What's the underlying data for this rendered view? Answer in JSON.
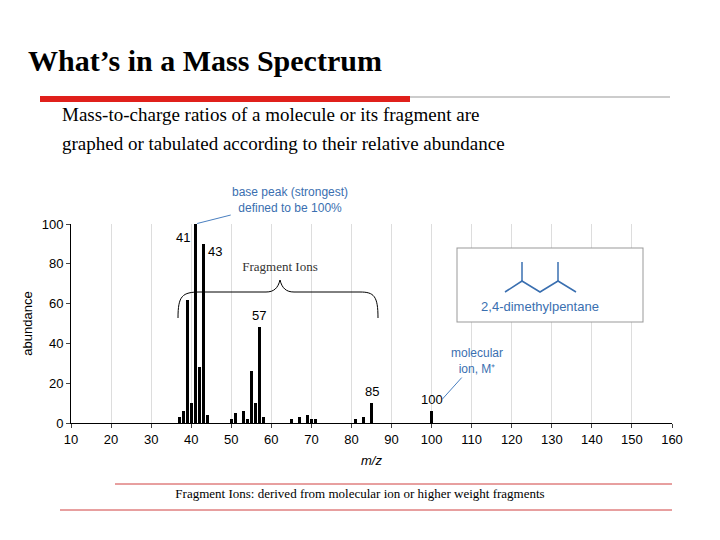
{
  "slide": {
    "title": "What’s in a Mass Spectrum",
    "subtitle": [
      "Mass-to-charge ratios of a molecule or its fragment are",
      "graphed or tabulated according to their relative abundance"
    ],
    "footer": "Fragment Ions: derived from molecular ion or higher weight fragments"
  },
  "chart_data": {
    "type": "bar",
    "x_label": "m/z",
    "y_label": "abundance",
    "x": [
      37,
      38,
      39,
      40,
      41,
      42,
      43,
      44,
      50,
      51,
      53,
      54,
      55,
      56,
      57,
      58,
      65,
      67,
      69,
      70,
      71,
      81,
      83,
      85,
      100
    ],
    "values": [
      3,
      6,
      62,
      10,
      100,
      28,
      90,
      4,
      2,
      5,
      6,
      2,
      26,
      10,
      48,
      3,
      2,
      3,
      4,
      2,
      2,
      2,
      3,
      10,
      6
    ],
    "color": "#000000",
    "xlim": [
      10,
      160
    ],
    "xticks": [
      10,
      20,
      30,
      40,
      50,
      60,
      70,
      80,
      90,
      100,
      110,
      120,
      130,
      140,
      150,
      160
    ],
    "ylim": [
      0,
      100
    ],
    "yticks": [
      0,
      20,
      40,
      60,
      80,
      100
    ],
    "grid": "x",
    "labeled_peaks": [
      41,
      43,
      57,
      85,
      100
    ],
    "annotations": [
      {
        "text": [
          "base peak (strongest)",
          "defined to be 100%"
        ],
        "x": 41
      },
      {
        "text": [
          "molecular",
          "ion, M⁺"
        ],
        "x": 100
      }
    ],
    "brace_label": "Fragment Ions",
    "compound": "2,4-dimethylpentane"
  }
}
